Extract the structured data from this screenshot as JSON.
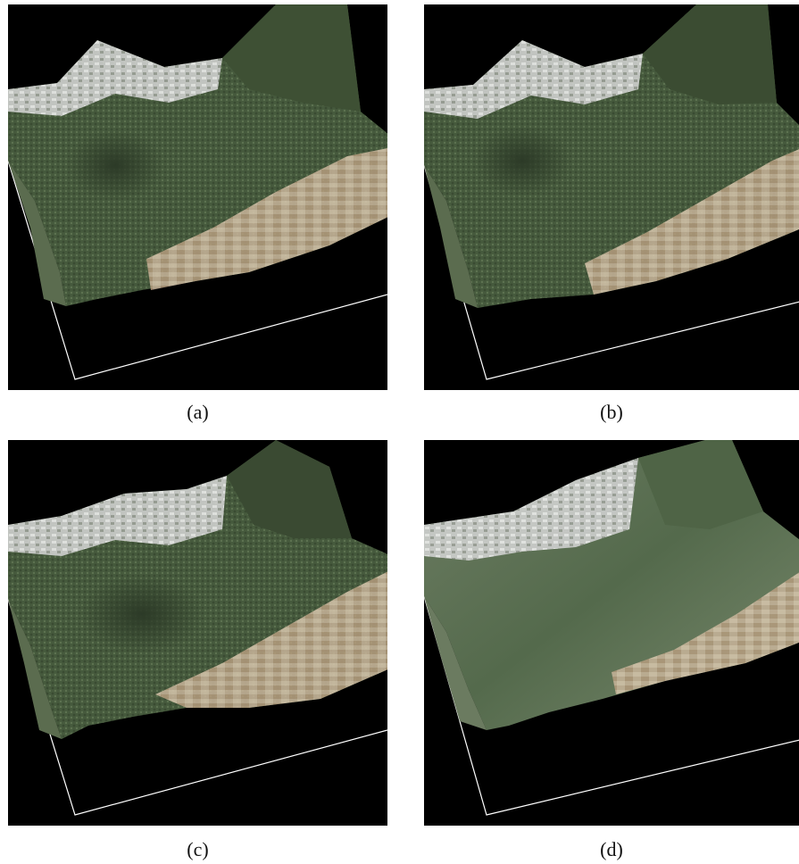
{
  "figure": {
    "panels": [
      {
        "id": "a",
        "caption": "(a)"
      },
      {
        "id": "b",
        "caption": "(b)"
      },
      {
        "id": "c",
        "caption": "(c)"
      },
      {
        "id": "d",
        "caption": "(d)"
      }
    ]
  },
  "colors": {
    "background": "#000000",
    "bounding_box": "#ffffff",
    "forest": "#4a5e3f",
    "fields": "#c9b59c",
    "urban": "#d8d8d8"
  }
}
